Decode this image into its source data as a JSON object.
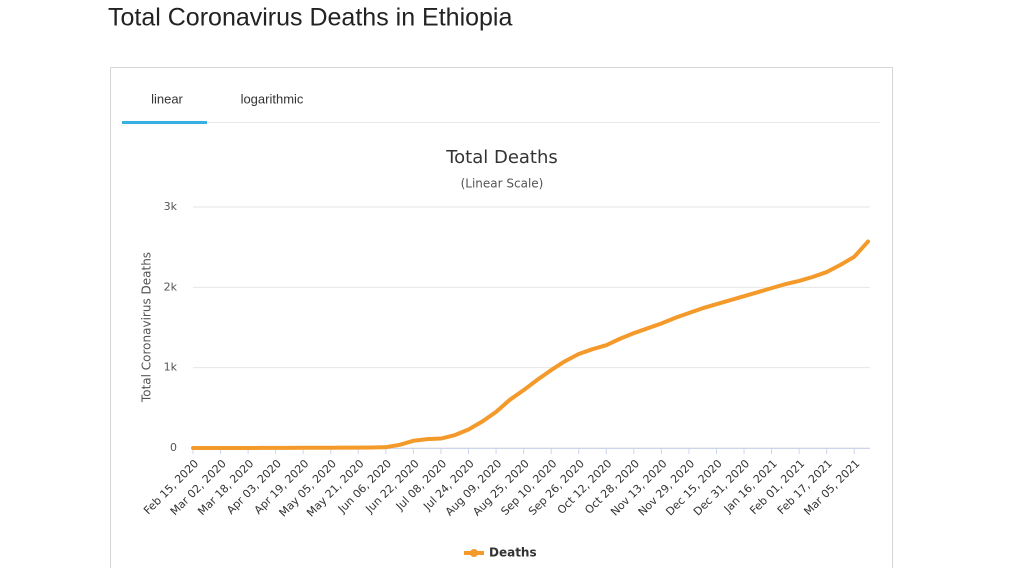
{
  "page": {
    "title": "Total Coronavirus Deaths in Ethiopia",
    "tabs": [
      "linear",
      "logarithmic"
    ]
  },
  "chart_data": {
    "type": "line",
    "title": "Total Deaths",
    "subtitle": "(Linear Scale)",
    "y_label": "Total Coronavirus Deaths",
    "categories": [
      "Feb 15, 2020",
      null,
      "Mar 02, 2020",
      null,
      "Mar 18, 2020",
      null,
      "Apr 03, 2020",
      null,
      "Apr 19, 2020",
      null,
      "May 05, 2020",
      null,
      "May 21, 2020",
      null,
      "Jun 06, 2020",
      null,
      "Jun 22, 2020",
      null,
      "Jul 08, 2020",
      null,
      "Jul 24, 2020",
      null,
      "Aug 09, 2020",
      null,
      "Aug 25, 2020",
      null,
      "Sep 10, 2020",
      null,
      "Sep 26, 2020",
      null,
      "Oct 12, 2020",
      null,
      "Oct 28, 2020",
      null,
      "Nov 13, 2020",
      null,
      "Nov 29, 2020",
      null,
      "Dec 15, 2020",
      null,
      "Dec 31, 2020",
      null,
      "Jan 16, 2021",
      null,
      "Feb 01, 2021",
      null,
      "Feb 17, 2021",
      null,
      "Mar 05, 2021",
      null
    ],
    "series": [
      {
        "name": "Deaths",
        "color": "#f39a2b",
        "values": [
          0,
          0,
          0,
          0,
          0,
          1,
          1,
          2,
          3,
          3,
          3,
          4,
          5,
          7,
          10,
          40,
          90,
          110,
          118,
          160,
          230,
          330,
          450,
          600,
          720,
          850,
          970,
          1080,
          1170,
          1230,
          1280,
          1360,
          1430,
          1490,
          1550,
          1620,
          1680,
          1740,
          1790,
          1840,
          1890,
          1940,
          1990,
          2040,
          2080,
          2130,
          2190,
          2280,
          2380,
          2570
        ]
      }
    ],
    "ylim": [
      0,
      3000
    ],
    "yticks": [
      0,
      {
        "value": 1000,
        "label": "1k"
      },
      {
        "value": 2000,
        "label": "2k"
      },
      {
        "value": 3000,
        "label": "3k"
      }
    ],
    "grid": true
  }
}
